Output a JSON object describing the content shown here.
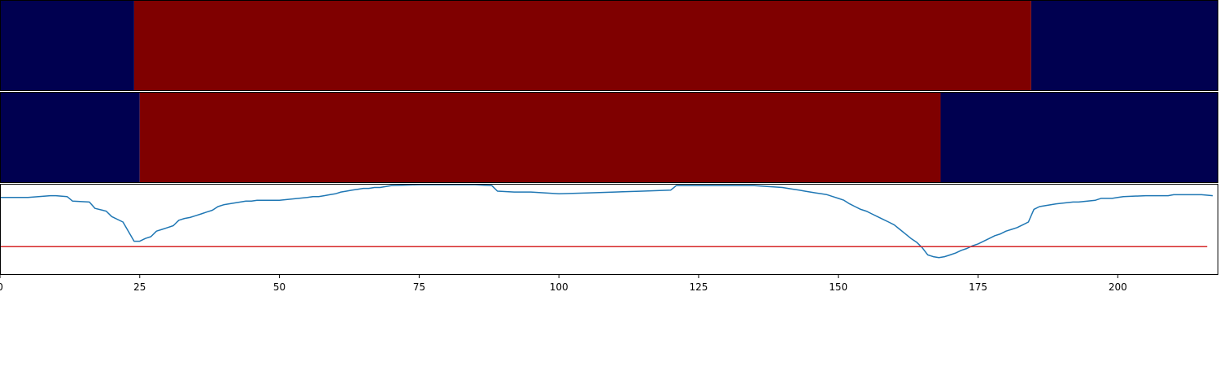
{
  "colors": {
    "low": "#000050",
    "high": "#7f0000",
    "line": "#1f77b4",
    "threshold": "#d62728",
    "axis": "#000000",
    "background": "#ffffff"
  },
  "chart_data": [
    {
      "type": "heatmap",
      "segments": [
        {
          "start": 0,
          "end": 24,
          "state": "low"
        },
        {
          "start": 24,
          "end": 184.5,
          "state": "high"
        },
        {
          "start": 184.5,
          "end": 218,
          "state": "low"
        }
      ]
    },
    {
      "type": "heatmap",
      "segments": [
        {
          "start": 0,
          "end": 25,
          "state": "low"
        },
        {
          "start": 25,
          "end": 168.3,
          "state": "high"
        },
        {
          "start": 168.3,
          "end": 218,
          "state": "low"
        }
      ]
    },
    {
      "type": "line",
      "xlim": [
        0,
        218
      ],
      "ylim": [
        0,
        1
      ],
      "xticks": [
        0,
        25,
        50,
        75,
        100,
        125,
        150,
        175,
        200
      ],
      "threshold": 0.31,
      "x": [
        0,
        5,
        9,
        10,
        12,
        13,
        16,
        17,
        19,
        20,
        22,
        24,
        25,
        26,
        27,
        28,
        29,
        30,
        31,
        32,
        33,
        34,
        35,
        36,
        37,
        38,
        39,
        40,
        41,
        42,
        43,
        44,
        45,
        46,
        47,
        48,
        49,
        50,
        55,
        56,
        57,
        58,
        59,
        60,
        61,
        62,
        63,
        64,
        65,
        66,
        67,
        68,
        69,
        70,
        75,
        80,
        85,
        88,
        89,
        92,
        93,
        95,
        100,
        105,
        110,
        115,
        120,
        121,
        122,
        125,
        130,
        135,
        140,
        141,
        142,
        143,
        144,
        145,
        146,
        147,
        148,
        149,
        150,
        151,
        152,
        153,
        154,
        155,
        156,
        157,
        158,
        159,
        160,
        161,
        162,
        163,
        164,
        165,
        166,
        167,
        168,
        169,
        170,
        171,
        172,
        173,
        174,
        175,
        176,
        177,
        178,
        179,
        180,
        181,
        182,
        183,
        184,
        185,
        186,
        189,
        192,
        193,
        196,
        197,
        199,
        200,
        201,
        205,
        207,
        209,
        210,
        211,
        213,
        215,
        217
      ],
      "y": [
        0.85,
        0.85,
        0.87,
        0.87,
        0.86,
        0.81,
        0.8,
        0.73,
        0.7,
        0.64,
        0.58,
        0.37,
        0.37,
        0.4,
        0.42,
        0.48,
        0.5,
        0.52,
        0.54,
        0.6,
        0.62,
        0.63,
        0.65,
        0.67,
        0.69,
        0.71,
        0.75,
        0.77,
        0.78,
        0.79,
        0.8,
        0.81,
        0.81,
        0.82,
        0.82,
        0.82,
        0.82,
        0.82,
        0.85,
        0.86,
        0.86,
        0.87,
        0.88,
        0.89,
        0.91,
        0.92,
        0.93,
        0.94,
        0.95,
        0.95,
        0.96,
        0.96,
        0.97,
        0.98,
        0.99,
        0.99,
        0.99,
        0.98,
        0.92,
        0.91,
        0.91,
        0.91,
        0.89,
        0.9,
        0.91,
        0.92,
        0.93,
        0.98,
        0.98,
        0.98,
        0.98,
        0.98,
        0.96,
        0.95,
        0.94,
        0.93,
        0.92,
        0.91,
        0.9,
        0.89,
        0.88,
        0.86,
        0.84,
        0.82,
        0.78,
        0.75,
        0.72,
        0.7,
        0.67,
        0.64,
        0.61,
        0.58,
        0.55,
        0.5,
        0.45,
        0.4,
        0.36,
        0.3,
        0.22,
        0.2,
        0.19,
        0.2,
        0.22,
        0.24,
        0.27,
        0.29,
        0.32,
        0.34,
        0.37,
        0.4,
        0.43,
        0.45,
        0.48,
        0.5,
        0.52,
        0.55,
        0.58,
        0.72,
        0.75,
        0.78,
        0.8,
        0.8,
        0.82,
        0.84,
        0.84,
        0.85,
        0.86,
        0.87,
        0.87,
        0.87,
        0.88,
        0.88,
        0.88,
        0.88,
        0.87
      ]
    }
  ]
}
